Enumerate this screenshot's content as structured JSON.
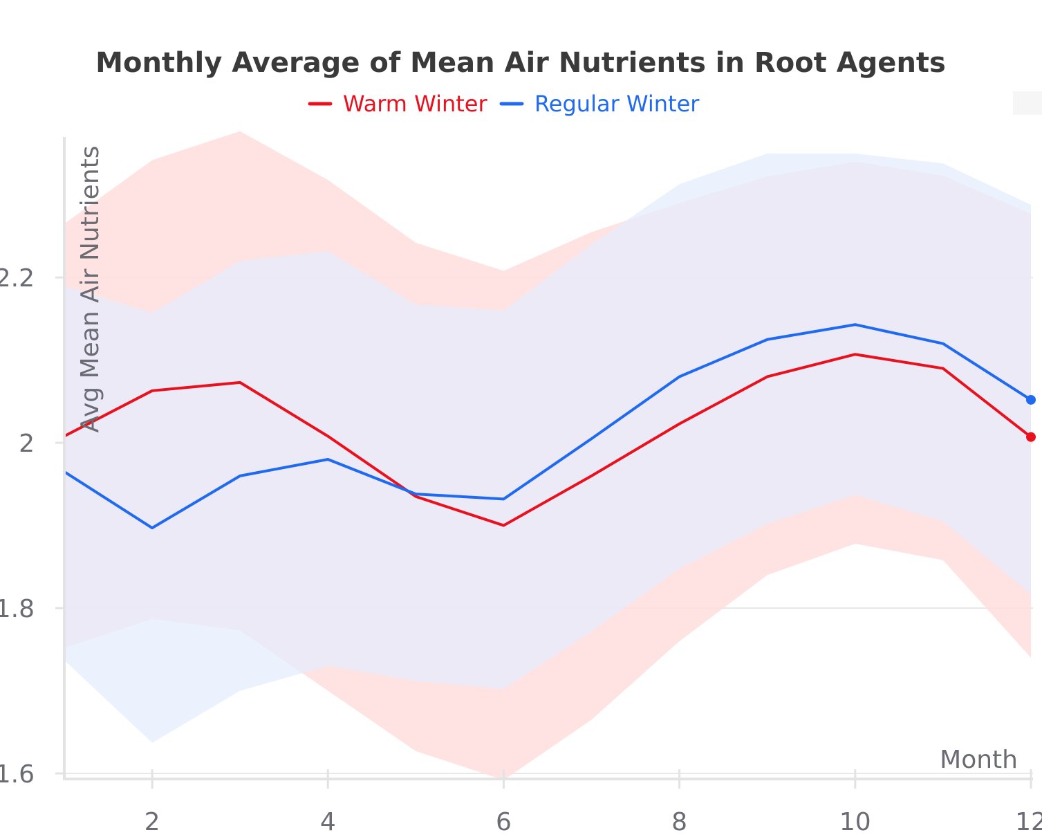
{
  "chart_data": {
    "type": "line",
    "title": "Monthly Average of Mean Air Nutrients in Root Agents",
    "xlabel": "Month",
    "ylabel": "Avg Mean Air Nutrients",
    "x": [
      1,
      2,
      3,
      4,
      5,
      6,
      7,
      8,
      9,
      10,
      11,
      12
    ],
    "xlim": [
      1,
      12
    ],
    "ylim": [
      1.6,
      2.37
    ],
    "x_ticks": [
      2,
      4,
      6,
      8,
      10,
      12
    ],
    "x_tick_labels": [
      "2",
      "4",
      "6",
      "8",
      "10",
      "12"
    ],
    "y_ticks": [
      1.6,
      1.8,
      2.0,
      2.2
    ],
    "y_tick_labels": [
      "1.6",
      "1.8",
      "2",
      "2.2"
    ],
    "grid": true,
    "legend_position": "top",
    "series": [
      {
        "name": "Warm Winter",
        "color": "#e8111d",
        "band_color": "#ffdede",
        "values": [
          2.008,
          2.063,
          2.073,
          2.008,
          1.935,
          1.9,
          1.96,
          2.023,
          2.08,
          2.107,
          2.09,
          2.007
        ],
        "upper": [
          2.265,
          2.342,
          2.377,
          2.318,
          2.242,
          2.208,
          2.255,
          2.29,
          2.322,
          2.34,
          2.323,
          2.277
        ],
        "lower": [
          1.752,
          1.787,
          1.773,
          1.7,
          1.627,
          1.592,
          1.665,
          1.76,
          1.84,
          1.878,
          1.858,
          1.74
        ]
      },
      {
        "name": "Regular Winter",
        "color": "#1f6af0",
        "band_color": "#e3edfe",
        "values": [
          1.965,
          1.897,
          1.96,
          1.98,
          1.938,
          1.932,
          2.005,
          2.08,
          2.125,
          2.143,
          2.12,
          2.052
        ],
        "upper": [
          2.19,
          2.157,
          2.22,
          2.232,
          2.167,
          2.16,
          2.24,
          2.313,
          2.35,
          2.35,
          2.338,
          2.288
        ],
        "lower": [
          1.737,
          1.637,
          1.7,
          1.73,
          1.712,
          1.702,
          1.772,
          1.848,
          1.902,
          1.937,
          1.905,
          1.817
        ]
      }
    ]
  }
}
